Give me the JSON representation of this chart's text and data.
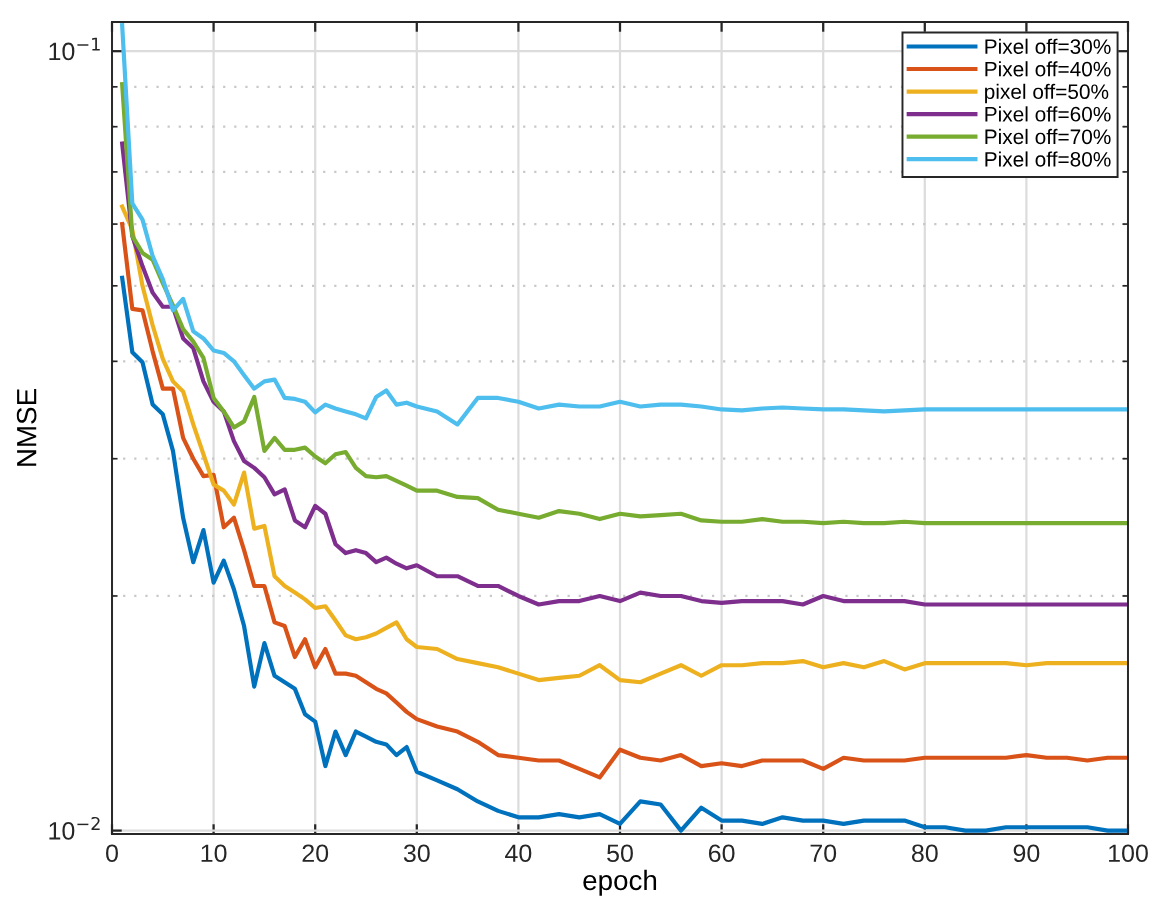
{
  "chart_data": {
    "type": "line",
    "xlabel": "epoch",
    "ylabel": "NMSE",
    "x": [
      1,
      2,
      3,
      4,
      5,
      6,
      7,
      8,
      9,
      10,
      11,
      12,
      13,
      14,
      15,
      16,
      17,
      18,
      19,
      20,
      21,
      22,
      23,
      24,
      25,
      26,
      27,
      28,
      29,
      30,
      32,
      34,
      36,
      38,
      40,
      42,
      44,
      46,
      48,
      50,
      52,
      54,
      56,
      58,
      60,
      62,
      64,
      66,
      68,
      70,
      72,
      74,
      76,
      78,
      80,
      82,
      84,
      86,
      88,
      90,
      92,
      94,
      96,
      98,
      100
    ],
    "series": [
      {
        "name": "Pixel off=30%",
        "color": "#0072bd",
        "values": [
          0.0512,
          0.0411,
          0.0399,
          0.0352,
          0.0342,
          0.0307,
          0.0252,
          0.0221,
          0.0243,
          0.0208,
          0.0222,
          0.0204,
          0.0183,
          0.0153,
          0.0174,
          0.0158,
          0.0155,
          0.0152,
          0.0141,
          0.0138,
          0.0121,
          0.0134,
          0.0125,
          0.0134,
          0.0132,
          0.013,
          0.0129,
          0.0125,
          0.0128,
          0.0119,
          0.0116,
          0.0113,
          0.0109,
          0.0106,
          0.0104,
          0.0104,
          0.0105,
          0.0104,
          0.0105,
          0.0102,
          0.0109,
          0.0108,
          0.01,
          0.0107,
          0.0103,
          0.0103,
          0.0102,
          0.0104,
          0.0103,
          0.0103,
          0.0102,
          0.0103,
          0.0103,
          0.0103,
          0.0101,
          0.0101,
          0.01,
          0.01,
          0.0101,
          0.0101,
          0.0101,
          0.0101,
          0.0101,
          0.01,
          0.01
        ]
      },
      {
        "name": "Pixel off=40%",
        "color": "#d95319",
        "values": [
          0.06,
          0.0467,
          0.0465,
          0.0412,
          0.0369,
          0.0369,
          0.0319,
          0.03,
          0.0285,
          0.0286,
          0.0245,
          0.0252,
          0.0229,
          0.0206,
          0.0206,
          0.0185,
          0.0183,
          0.0167,
          0.0176,
          0.0162,
          0.0171,
          0.0159,
          0.0159,
          0.0158,
          0.0155,
          0.0152,
          0.015,
          0.0146,
          0.0142,
          0.0139,
          0.0136,
          0.0134,
          0.013,
          0.0125,
          0.0124,
          0.0123,
          0.0123,
          0.012,
          0.0117,
          0.0127,
          0.0124,
          0.0123,
          0.0125,
          0.0121,
          0.0122,
          0.0121,
          0.0123,
          0.0123,
          0.0123,
          0.012,
          0.0124,
          0.0123,
          0.0123,
          0.0123,
          0.0124,
          0.0124,
          0.0124,
          0.0124,
          0.0124,
          0.0125,
          0.0124,
          0.0124,
          0.0123,
          0.0124,
          0.0124
        ]
      },
      {
        "name": "pixel off=50%",
        "color": "#edb120",
        "values": [
          0.0632,
          0.059,
          0.05,
          0.0445,
          0.0403,
          0.0377,
          0.0366,
          0.0332,
          0.0304,
          0.0278,
          0.0273,
          0.0262,
          0.0288,
          0.0244,
          0.0246,
          0.0212,
          0.0206,
          0.0202,
          0.0198,
          0.0193,
          0.0194,
          0.0186,
          0.0178,
          0.0176,
          0.0177,
          0.0179,
          0.0182,
          0.0185,
          0.0176,
          0.0172,
          0.0171,
          0.0166,
          0.0164,
          0.0162,
          0.0159,
          0.0156,
          0.0157,
          0.0158,
          0.0163,
          0.0156,
          0.0155,
          0.0159,
          0.0163,
          0.0158,
          0.0163,
          0.0163,
          0.0164,
          0.0164,
          0.0165,
          0.0162,
          0.0164,
          0.0162,
          0.0165,
          0.0161,
          0.0164,
          0.0164,
          0.0164,
          0.0164,
          0.0164,
          0.0163,
          0.0164,
          0.0164,
          0.0164,
          0.0164,
          0.0164
        ]
      },
      {
        "name": "Pixel off=60%",
        "color": "#7e2f8e",
        "values": [
          0.0761,
          0.0579,
          0.053,
          0.049,
          0.047,
          0.047,
          0.0428,
          0.0416,
          0.0377,
          0.0355,
          0.0345,
          0.0316,
          0.0298,
          0.0292,
          0.0284,
          0.027,
          0.0274,
          0.025,
          0.0245,
          0.0261,
          0.0255,
          0.0233,
          0.0227,
          0.0229,
          0.0227,
          0.0221,
          0.0224,
          0.022,
          0.0217,
          0.0219,
          0.0212,
          0.0212,
          0.0206,
          0.0206,
          0.02,
          0.0195,
          0.0197,
          0.0197,
          0.02,
          0.0197,
          0.0202,
          0.02,
          0.02,
          0.0197,
          0.0196,
          0.0197,
          0.0197,
          0.0197,
          0.0195,
          0.02,
          0.0197,
          0.0197,
          0.0197,
          0.0197,
          0.0195,
          0.0195,
          0.0195,
          0.0195,
          0.0195,
          0.0195,
          0.0195,
          0.0195,
          0.0195,
          0.0195,
          0.0195
        ]
      },
      {
        "name": "Pixel off=70%",
        "color": "#77ac30",
        "values": [
          0.0907,
          0.0579,
          0.0551,
          0.054,
          0.0504,
          0.0472,
          0.044,
          0.0424,
          0.0404,
          0.0359,
          0.0345,
          0.0329,
          0.0335,
          0.036,
          0.0307,
          0.0319,
          0.0308,
          0.0308,
          0.031,
          0.0302,
          0.0296,
          0.0304,
          0.0306,
          0.0292,
          0.0285,
          0.0284,
          0.0285,
          0.0281,
          0.0277,
          0.0273,
          0.0273,
          0.0268,
          0.0267,
          0.0258,
          0.0255,
          0.0252,
          0.0257,
          0.0255,
          0.0251,
          0.0255,
          0.0253,
          0.0254,
          0.0255,
          0.025,
          0.0249,
          0.0249,
          0.0251,
          0.0249,
          0.0249,
          0.0248,
          0.0249,
          0.0248,
          0.0248,
          0.0249,
          0.0248,
          0.0248,
          0.0248,
          0.0248,
          0.0248,
          0.0248,
          0.0248,
          0.0248,
          0.0248,
          0.0248,
          0.0248
        ]
      },
      {
        "name": "Pixel off=80%",
        "color": "#4dbeee",
        "values": [
          0.108,
          0.0638,
          0.0608,
          0.0546,
          0.051,
          0.0465,
          0.0481,
          0.0437,
          0.0428,
          0.0413,
          0.041,
          0.04,
          0.0384,
          0.0369,
          0.0377,
          0.0379,
          0.0359,
          0.0358,
          0.0355,
          0.0344,
          0.0352,
          0.0348,
          0.0345,
          0.0342,
          0.0338,
          0.036,
          0.0367,
          0.0352,
          0.0354,
          0.035,
          0.0345,
          0.0332,
          0.0359,
          0.0359,
          0.0355,
          0.0348,
          0.0352,
          0.035,
          0.035,
          0.0355,
          0.035,
          0.0352,
          0.0352,
          0.035,
          0.0347,
          0.0346,
          0.0348,
          0.0349,
          0.0348,
          0.0347,
          0.0347,
          0.0346,
          0.0345,
          0.0346,
          0.0347,
          0.0347,
          0.0347,
          0.0347,
          0.0347,
          0.0347,
          0.0347,
          0.0347,
          0.0347,
          0.0347,
          0.0347
        ]
      }
    ],
    "log": "y",
    "xlim": [
      0,
      100
    ],
    "ylim": [
      0.0099,
      0.109
    ],
    "xticks": [
      0,
      10,
      20,
      30,
      40,
      50,
      60,
      70,
      80,
      90,
      100
    ],
    "yticks": [
      {
        "value": 0.01,
        "label": "10$^{−2}$"
      },
      {
        "value": 0.1,
        "label": "10$^{−1}$"
      }
    ],
    "grid": true,
    "legend": "top right",
    "marker": "none",
    "line_style": "solid"
  }
}
